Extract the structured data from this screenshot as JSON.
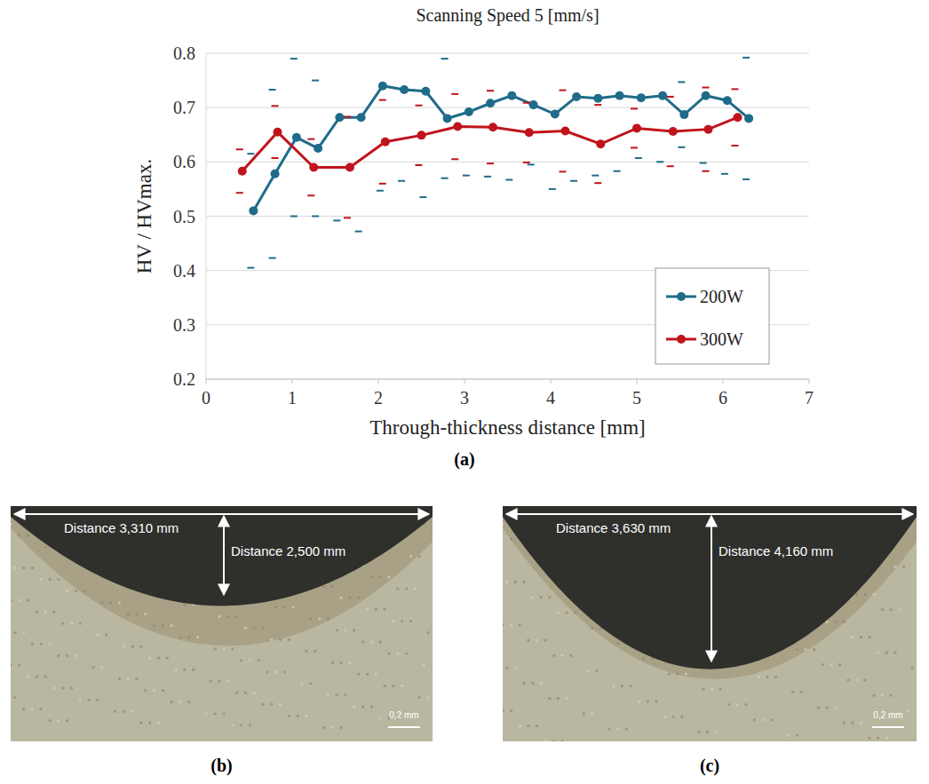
{
  "chart_data": {
    "type": "line",
    "title": "Scanning Speed 5 [mm/s]",
    "x_label": "Through-thickness distance [mm]",
    "y_label": "HV / HVmax.",
    "xlim": [
      0,
      7
    ],
    "xticks": [
      0,
      1,
      2,
      3,
      4,
      5,
      6,
      7
    ],
    "ylim": [
      0.2,
      0.8
    ],
    "yticks": [
      0.2,
      0.3,
      0.4,
      0.5,
      0.6,
      0.7,
      0.8
    ],
    "grid": true,
    "legend": "bottom-right",
    "marker": "circle",
    "series": [
      {
        "name": "200W",
        "color": "#1f6b8a",
        "x": [
          0.55,
          0.8,
          1.05,
          1.3,
          1.55,
          1.8,
          2.05,
          2.3,
          2.55,
          2.8,
          3.05,
          3.3,
          3.55,
          3.8,
          4.05,
          4.3,
          4.55,
          4.8,
          5.05,
          5.3,
          5.55,
          5.8,
          6.05,
          6.3
        ],
        "values": [
          0.51,
          0.578,
          0.645,
          0.625,
          0.682,
          0.682,
          0.74,
          0.733,
          0.73,
          0.68,
          0.692,
          0.708,
          0.722,
          0.705,
          0.688,
          0.72,
          0.717,
          0.722,
          0.718,
          0.722,
          0.687,
          0.722,
          0.713,
          0.68
        ],
        "errors": [
          0.105,
          0.155,
          0.145,
          0.125,
          0.19,
          0.21,
          0.193,
          0.168,
          0.195,
          0.11,
          0.117,
          0.135,
          0.155,
          0.11,
          0.138,
          0.155,
          0.142,
          0.139,
          0.111,
          0.122,
          0.06,
          0.124,
          0.135,
          0.112
        ]
      },
      {
        "name": "300W",
        "color": "#c0141c",
        "x": [
          0.42,
          0.83,
          1.25,
          1.67,
          2.08,
          2.5,
          2.92,
          3.33,
          3.75,
          4.17,
          4.58,
          5.0,
          5.42,
          5.83,
          6.17
        ],
        "values": [
          0.583,
          0.655,
          0.59,
          0.59,
          0.637,
          0.649,
          0.665,
          0.664,
          0.654,
          0.657,
          0.633,
          0.662,
          0.656,
          0.66,
          0.682
        ],
        "errors": [
          0.04,
          0.048,
          0.052,
          0.093,
          0.077,
          0.055,
          0.06,
          0.067,
          0.055,
          0.075,
          0.072,
          0.036,
          0.064,
          0.077,
          0.052
        ]
      }
    ]
  },
  "figure": {
    "panel_a": "(a)",
    "images": [
      {
        "label": "(b)",
        "width_text": "Distance 3,310 mm",
        "depth_text": "Distance 2,500 mm",
        "scale_bar": "0,2 mm"
      },
      {
        "label": "(c)",
        "width_text": "Distance 3,630 mm",
        "depth_text": "Distance 4,160 mm",
        "scale_bar": "0,2 mm"
      }
    ]
  }
}
